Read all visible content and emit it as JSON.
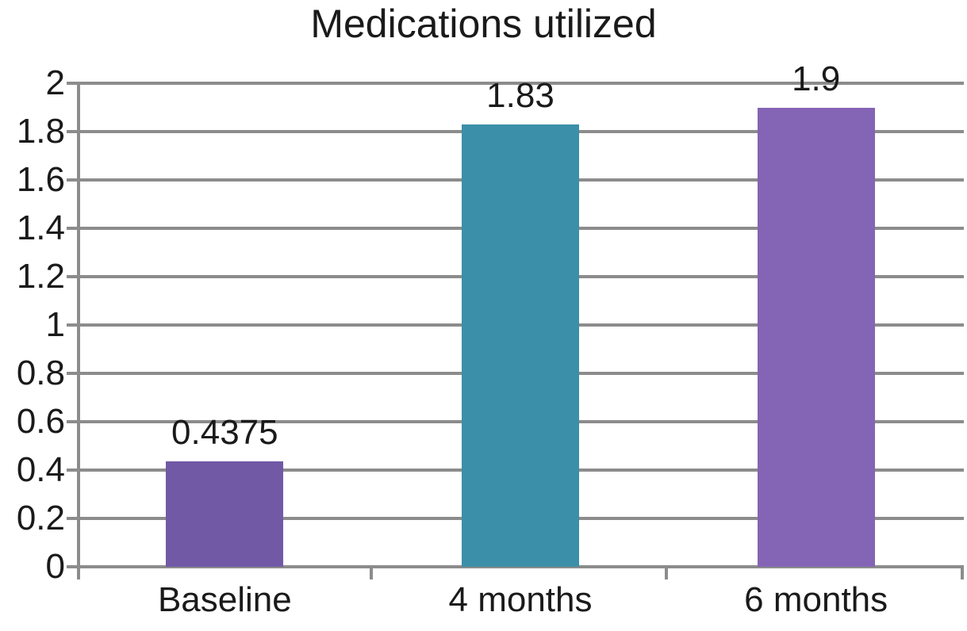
{
  "chart_data": {
    "type": "bar",
    "title": "Medications utilized",
    "categories": [
      "Baseline",
      "4 months",
      "6 months"
    ],
    "values": [
      0.4375,
      1.83,
      1.9
    ],
    "value_labels": [
      "0.4375",
      "1.83",
      "1.9"
    ],
    "bar_colors": [
      "#7159a6",
      "#3b8fa8",
      "#8464b4"
    ],
    "xlabel": "",
    "ylabel": "",
    "ylim": [
      0,
      2
    ],
    "ytick_step": 0.2,
    "ytick_labels": [
      "0",
      "0.2",
      "0.4",
      "0.6",
      "0.8",
      "1",
      "1.2",
      "1.4",
      "1.6",
      "1.8",
      "2"
    ],
    "grid": true,
    "legend": false,
    "grid_color": "#8c8c8c",
    "axis_color": "#8c8c8c",
    "text_color": "#1a1a1a",
    "background_color": "#ffffff"
  }
}
